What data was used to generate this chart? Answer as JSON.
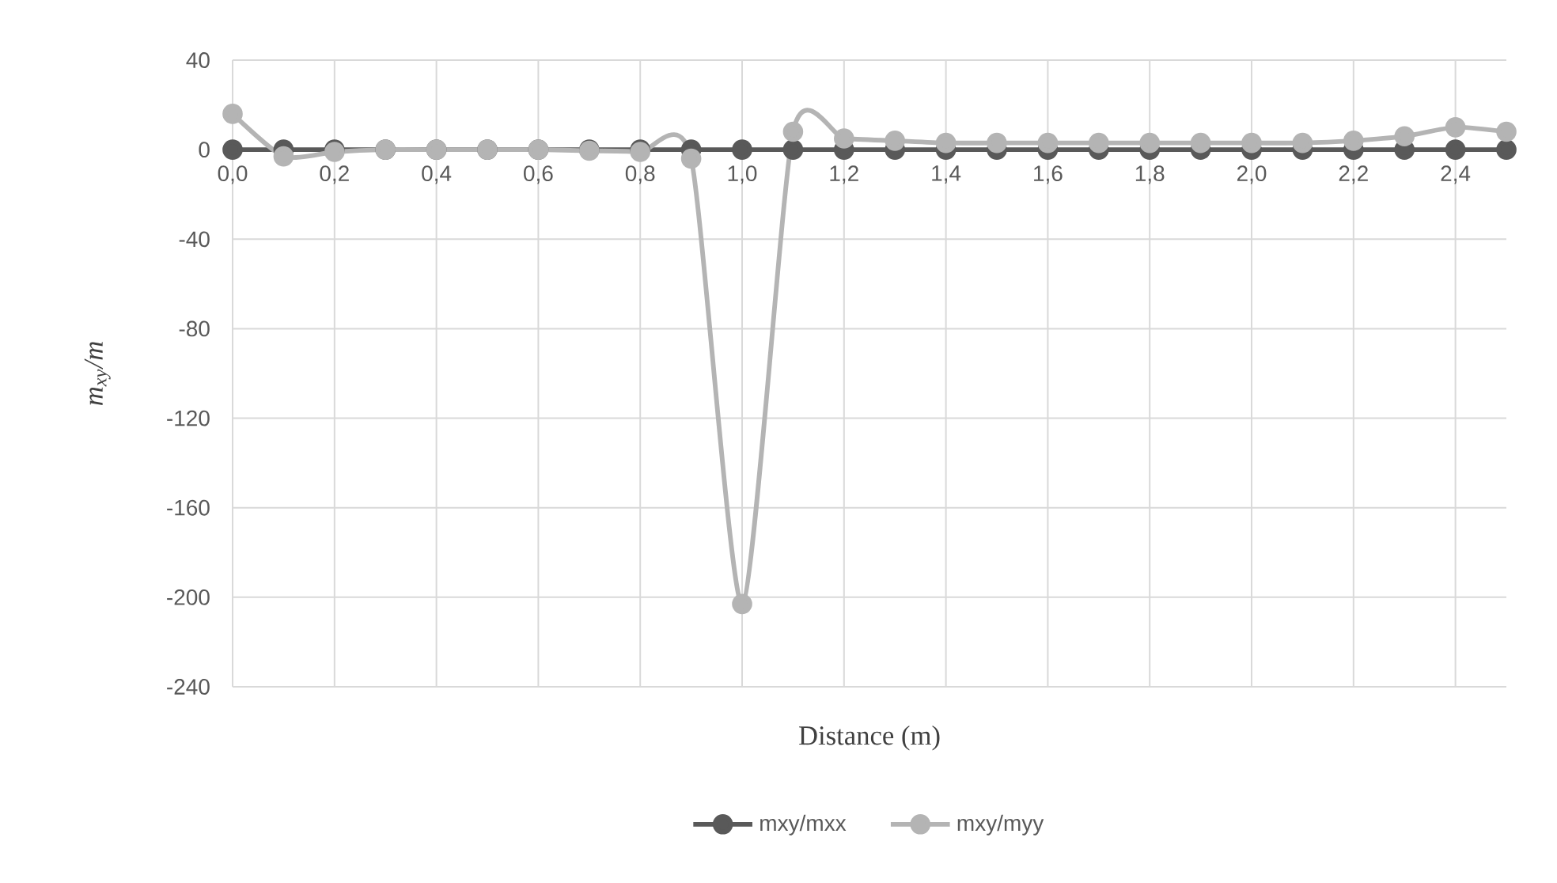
{
  "chart_data": {
    "type": "line",
    "xlabel": "Distance (m)",
    "ylabel": "m$_{xy}$/m",
    "x": [
      0.0,
      0.1,
      0.2,
      0.3,
      0.4,
      0.5,
      0.6,
      0.7,
      0.8,
      0.9,
      1.0,
      1.1,
      1.2,
      1.3,
      1.4,
      1.5,
      1.6,
      1.7,
      1.8,
      1.9,
      2.0,
      2.1,
      2.2,
      2.3,
      2.4,
      2.5
    ],
    "series": [
      {
        "name": "mxy/mxx",
        "color": "#595959",
        "values": [
          0,
          0,
          0,
          0,
          0,
          0,
          0,
          0,
          0,
          0,
          0,
          0,
          0,
          0,
          0,
          0,
          0,
          0,
          0,
          0,
          0,
          0,
          0,
          0,
          0,
          0
        ]
      },
      {
        "name": "mxy/myy",
        "color": "#b4b4b4",
        "values": [
          16,
          -3,
          -1,
          0,
          0,
          0,
          0,
          -0.5,
          -1,
          -4,
          -203,
          8,
          5,
          4,
          3,
          3,
          3,
          3,
          3,
          3,
          3,
          3,
          4,
          6,
          10,
          8
        ]
      }
    ],
    "xlim": [
      0,
      2.5
    ],
    "xticks": [
      {
        "value": 0.0,
        "label": "0,0"
      },
      {
        "value": 0.2,
        "label": "0,2"
      },
      {
        "value": 0.4,
        "label": "0,4"
      },
      {
        "value": 0.6,
        "label": "0,6"
      },
      {
        "value": 0.8,
        "label": "0,8"
      },
      {
        "value": 1.0,
        "label": "1,0"
      },
      {
        "value": 1.2,
        "label": "1,2"
      },
      {
        "value": 1.4,
        "label": "1,4"
      },
      {
        "value": 1.6,
        "label": "1,6"
      },
      {
        "value": 1.8,
        "label": "1,8"
      },
      {
        "value": 2.0,
        "label": "2,0"
      },
      {
        "value": 2.2,
        "label": "2,2"
      },
      {
        "value": 2.4,
        "label": "2,4"
      }
    ],
    "ylim": [
      -240,
      40
    ],
    "yticks": [
      40,
      0,
      -40,
      -80,
      -120,
      -160,
      -200,
      -240
    ],
    "grid": true,
    "legend": "bottom",
    "marker": "circle",
    "line_style": "solid"
  }
}
